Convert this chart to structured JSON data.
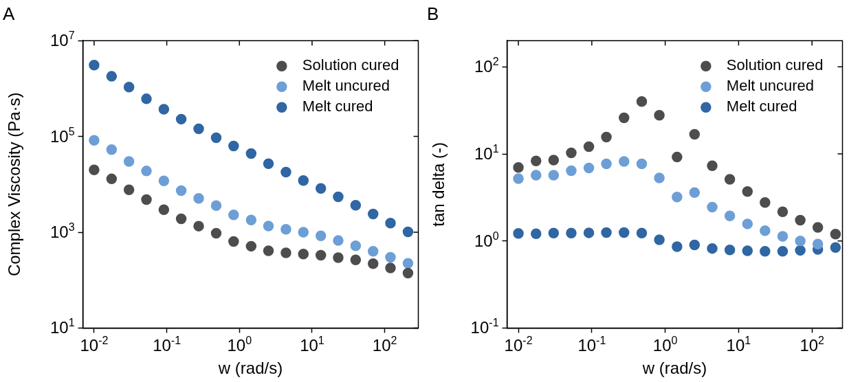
{
  "chart_data": [
    {
      "type": "scatter",
      "title": "A",
      "xlabel": "w (rad/s)",
      "ylabel": "Complex Viscosity (Pa·s)",
      "log": "xy",
      "grid": false,
      "legend": "top right",
      "marker": "circle",
      "x": [
        0.01,
        0.0174,
        0.0302,
        0.0525,
        0.0912,
        0.158,
        0.275,
        0.479,
        0.832,
        1.45,
        2.51,
        4.37,
        7.59,
        13.2,
        22.9,
        39.8,
        69.2,
        120,
        209
      ],
      "xlim": [
        0.007,
        290
      ],
      "xticks": [
        {
          "value": 0.01,
          "label": "10$^{-2}$"
        },
        {
          "value": 0.1,
          "label": "10$^{-1}$"
        },
        {
          "value": 1,
          "label": "10$^{0}$"
        },
        {
          "value": 10,
          "label": "10$^{1}$"
        },
        {
          "value": 100,
          "label": "10$^{2}$"
        }
      ],
      "ylim": [
        10,
        10000000
      ],
      "yticks": [
        {
          "value": 10,
          "label": "10$^{1}$"
        },
        {
          "value": 1000,
          "label": "10$^{3}$"
        },
        {
          "value": 100000,
          "label": "10$^{5}$"
        },
        {
          "value": 10000000,
          "label": "10$^{7}$"
        }
      ],
      "series": [
        {
          "name": "Solution cured",
          "color": "#4d4d4d",
          "values": [
            20000,
            13000,
            7700,
            4800,
            2950,
            1900,
            1340,
            950,
            640,
            510,
            410,
            370,
            350,
            330,
            295,
            265,
            220,
            180,
            140
          ]
        },
        {
          "name": "Melt uncured",
          "color": "#6d9fd6",
          "values": [
            83000,
            53000,
            30000,
            19000,
            11800,
            7400,
            5100,
            3600,
            2300,
            1800,
            1350,
            1150,
            1000,
            840,
            670,
            520,
            400,
            300,
            225
          ]
        },
        {
          "name": "Melt cured",
          "color": "#2f66a3",
          "values": [
            3100000,
            1800000,
            1070000,
            610000,
            370000,
            230000,
            144000,
            94000,
            63000,
            44000,
            27000,
            18000,
            12000,
            8200,
            5500,
            3650,
            2400,
            1550,
            1020
          ]
        }
      ]
    },
    {
      "type": "scatter",
      "title": "B",
      "xlabel": "w (rad/s)",
      "ylabel": "tan delta (-)",
      "log": "xy",
      "grid": false,
      "legend": "top right",
      "marker": "circle",
      "x": [
        0.01,
        0.0174,
        0.0302,
        0.0525,
        0.0912,
        0.158,
        0.275,
        0.479,
        0.832,
        1.45,
        2.51,
        4.37,
        7.59,
        13.2,
        22.9,
        39.8,
        69.2,
        120,
        209
      ],
      "xlim": [
        0.007,
        260
      ],
      "xticks": [
        {
          "value": 0.01,
          "label": "10$^{-2}$"
        },
        {
          "value": 0.1,
          "label": "10$^{-1}$"
        },
        {
          "value": 1,
          "label": "10$^{0}$"
        },
        {
          "value": 10,
          "label": "10$^{1}$"
        },
        {
          "value": 100,
          "label": "10$^{2}$"
        }
      ],
      "ylim": [
        0.1,
        200
      ],
      "yticks": [
        {
          "value": 0.1,
          "label": "10$^{-1}$"
        },
        {
          "value": 1,
          "label": "10$^{0}$"
        },
        {
          "value": 10,
          "label": "10$^{1}$"
        },
        {
          "value": 100,
          "label": "10$^{2}$"
        }
      ],
      "series": [
        {
          "name": "Solution cured",
          "color": "#4d4d4d",
          "values": [
            7.0,
            8.3,
            8.5,
            10.3,
            12.1,
            15.6,
            26,
            40,
            27.8,
            9.2,
            16.8,
            7.3,
            5.1,
            3.7,
            2.77,
            2.16,
            1.73,
            1.43,
            1.2
          ]
        },
        {
          "name": "Melt uncured",
          "color": "#6d9fd6",
          "values": [
            5.2,
            5.7,
            5.7,
            6.4,
            6.9,
            7.7,
            8.2,
            7.7,
            5.3,
            3.2,
            3.6,
            2.45,
            1.94,
            1.57,
            1.31,
            1.13,
            1.0,
            0.92,
            null
          ]
        },
        {
          "name": "Melt cured",
          "color": "#2f66a3",
          "values": [
            1.22,
            1.21,
            1.23,
            1.23,
            1.24,
            1.25,
            1.25,
            1.23,
            1.03,
            0.86,
            0.9,
            0.82,
            0.79,
            0.77,
            0.76,
            0.76,
            0.78,
            0.8,
            0.84
          ]
        }
      ]
    }
  ]
}
